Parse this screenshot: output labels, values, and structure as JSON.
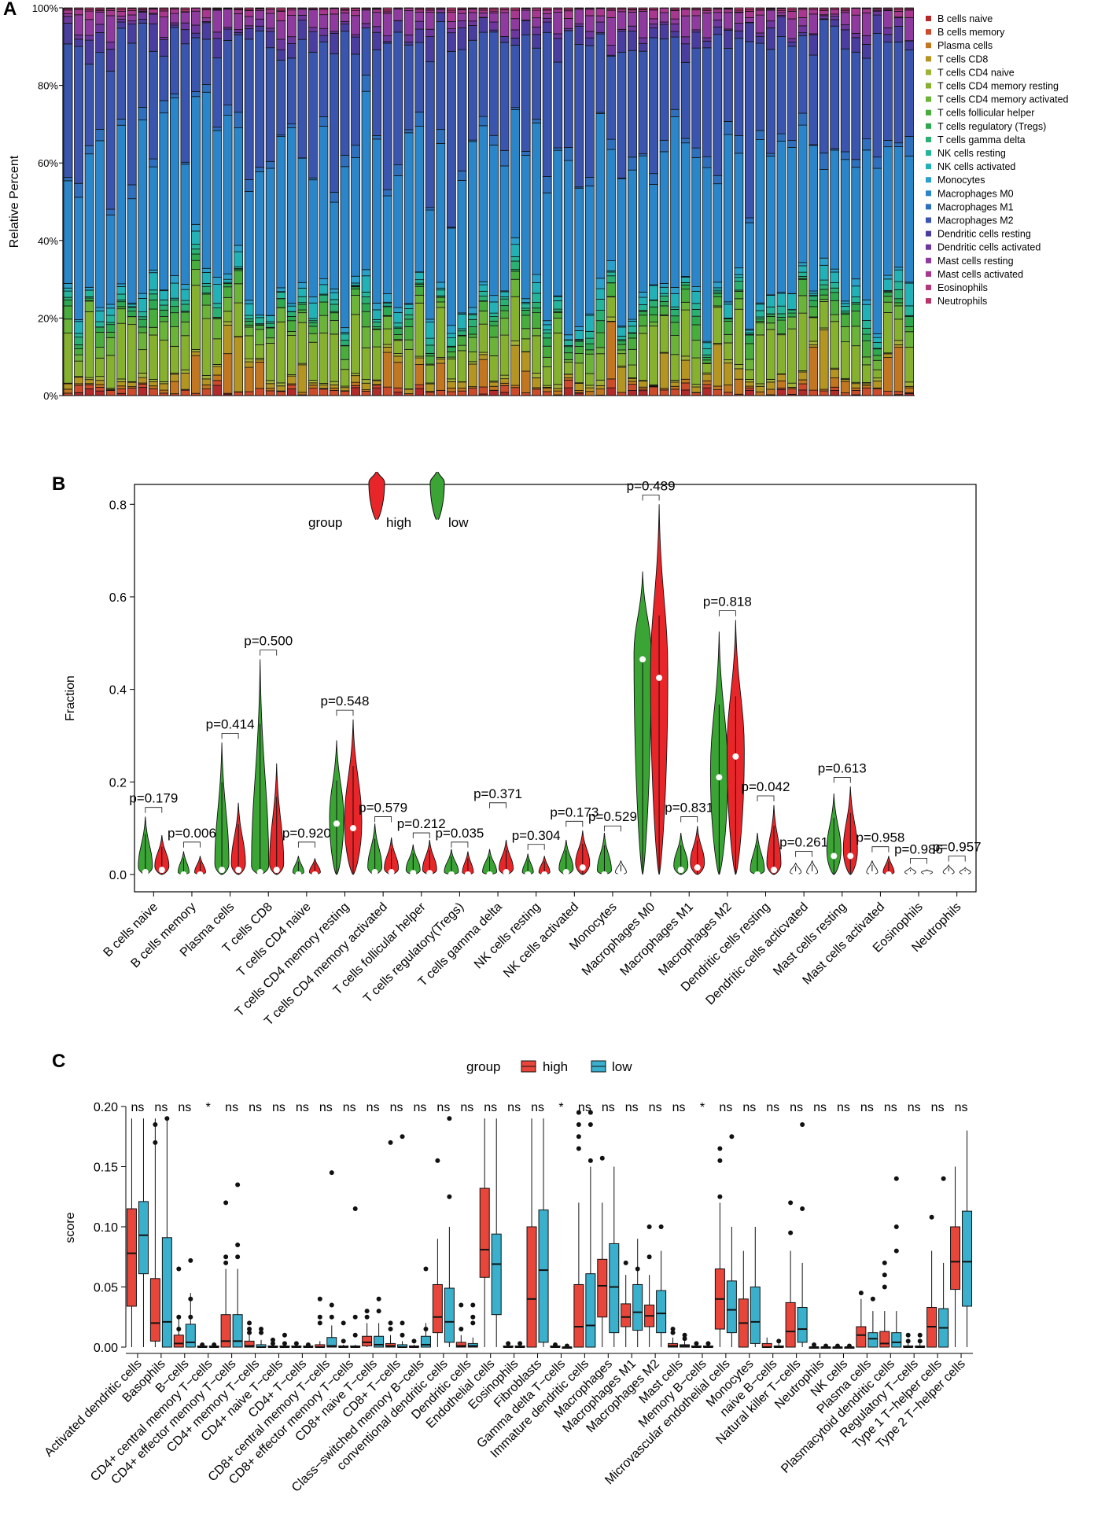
{
  "panels": {
    "a": {
      "letter": "A"
    },
    "b": {
      "letter": "B"
    },
    "c": {
      "letter": "C"
    }
  },
  "chart_data": [
    {
      "type": "bar",
      "subtype": "stacked-100-percent",
      "ylabel": "Relative Percent",
      "y_ticks": [
        "0%",
        "20%",
        "40%",
        "60%",
        "80%",
        "100%"
      ],
      "ylim": [
        0,
        1
      ],
      "n_samples": 80,
      "legend_position": "right",
      "series": [
        {
          "name": "B cells naive",
          "color": "#b22a2a"
        },
        {
          "name": "B cells memory",
          "color": "#cc4b2b"
        },
        {
          "name": "Plasma cells",
          "color": "#c2761f"
        },
        {
          "name": "T cells CD8",
          "color": "#b59522"
        },
        {
          "name": "T cells CD4 naive",
          "color": "#a0b135"
        },
        {
          "name": "T cells CD4 memory resting",
          "color": "#86b12f"
        },
        {
          "name": "T cells CD4 memory activated",
          "color": "#6cb33a"
        },
        {
          "name": "T cells follicular helper",
          "color": "#48ad3c"
        },
        {
          "name": "T cells regulatory (Tregs)",
          "color": "#2fa94f"
        },
        {
          "name": "T cells gamma delta",
          "color": "#2ab073"
        },
        {
          "name": "NK cells resting",
          "color": "#25b59b"
        },
        {
          "name": "NK cells activated",
          "color": "#22b1b7"
        },
        {
          "name": "Monocytes",
          "color": "#2aa0cb"
        },
        {
          "name": "Macrophages M0",
          "color": "#2a86c8"
        },
        {
          "name": "Macrophages M1",
          "color": "#2e6fbe"
        },
        {
          "name": "Macrophages M2",
          "color": "#3a55ad"
        },
        {
          "name": "Dendritic cells resting",
          "color": "#4a3da0"
        },
        {
          "name": "Dendritic cells activated",
          "color": "#6e37a0"
        },
        {
          "name": "Mast cells resting",
          "color": "#8e3a9e"
        },
        {
          "name": "Mast cells activated",
          "color": "#a8388f"
        },
        {
          "name": "Eosinophils",
          "color": "#b5377b"
        },
        {
          "name": "Neutrophils",
          "color": "#b8356a"
        }
      ]
    },
    {
      "type": "violin",
      "ylabel": "Fraction",
      "ylim": [
        0,
        0.85
      ],
      "y_ticks": [
        "0.0",
        "0.2",
        "0.4",
        "0.6",
        "0.8"
      ],
      "legend_title": "group",
      "legend": [
        {
          "name": "high",
          "color": "#e8262a"
        },
        {
          "name": "low",
          "color": "#3aa535"
        }
      ],
      "categories": [
        "B cells naive",
        "B cells memory",
        "Plasma cells",
        "T cells CD8",
        "T cells CD4 naive",
        "T cells CD4 memory resting",
        "T cells CD4 memory activated",
        "T cells follicular helper",
        "T cells regulatory(Tregs)",
        "T cells gamma delta",
        "NK cells resting",
        "NK cells activated",
        "Monocytes",
        "Macrophages M0",
        "Macrophages M1",
        "Macrophages M2",
        "Dendritic cells resting",
        "Dendritic cells acticvated",
        "Mast cells resting",
        "Mast cells activated",
        "Eosinophils",
        "Neutrophils"
      ],
      "p_values": [
        "p=0.179",
        "p=0.006",
        "p=0.414",
        "p=0.500",
        "p=0.920",
        "p=0.548",
        "p=0.579",
        "p=0.212",
        "p=0.035",
        "p=0.371",
        "p=0.304",
        "p=0.173",
        "p=0.529",
        "p=0.489",
        "p=0.831",
        "p=0.818",
        "p=0.042",
        "p=0.261",
        "p=0.613",
        "p=0.958",
        "p=0.986",
        "p=0.957"
      ],
      "low_max": [
        0.125,
        0.05,
        0.285,
        0.465,
        0.04,
        0.29,
        0.11,
        0.065,
        0.055,
        0.055,
        0.045,
        0.075,
        0.09,
        0.655,
        0.09,
        0.525,
        0.09,
        0.025,
        0.175,
        0.03,
        0.015,
        0.02
      ],
      "high_max": [
        0.085,
        0.04,
        0.155,
        0.24,
        0.035,
        0.335,
        0.08,
        0.075,
        0.05,
        0.075,
        0.04,
        0.095,
        0.03,
        0.8,
        0.105,
        0.55,
        0.15,
        0.03,
        0.19,
        0.04,
        0.01,
        0.015
      ],
      "low_median": [
        0.005,
        0.0,
        0.01,
        0.005,
        0.0,
        0.11,
        0.005,
        0.003,
        0.0,
        0.0,
        0.0,
        0.005,
        0.0,
        0.465,
        0.01,
        0.21,
        0.0,
        0.0,
        0.04,
        0.0,
        0.0,
        0.0
      ],
      "high_median": [
        0.01,
        0.0,
        0.01,
        0.01,
        0.0,
        0.1,
        0.005,
        0.003,
        0.0,
        0.005,
        0.0,
        0.015,
        0.0,
        0.425,
        0.015,
        0.255,
        0.01,
        0.0,
        0.04,
        0.0,
        0.0,
        0.0
      ],
      "p_y": [
        0.145,
        0.07,
        0.305,
        0.485,
        0.07,
        0.355,
        0.125,
        0.09,
        0.07,
        0.155,
        0.065,
        0.115,
        0.105,
        0.82,
        0.125,
        0.57,
        0.17,
        0.05,
        0.21,
        0.06,
        0.035,
        0.04
      ]
    },
    {
      "type": "box",
      "ylabel": "score",
      "ylim": [
        0,
        0.21
      ],
      "y_ticks": [
        "0.00",
        "0.05",
        "0.10",
        "0.15",
        "0.20"
      ],
      "legend_title": "group",
      "legend": [
        {
          "name": "high",
          "color": "#e8463a"
        },
        {
          "name": "low",
          "color": "#3ab0cd"
        }
      ],
      "categories": [
        "Activated dendritic cells",
        "Basophils",
        "B−cells",
        "CD4+ central memory T−cells",
        "CD4+ effector memory T−cells",
        "CD4+ memory T−cells",
        "CD4+ naive T−cells",
        "CD4+ T−cells",
        "CD8+ central memory T−cells",
        "CD8+ effector memory T−cells",
        "CD8+ naive T−cells",
        "CD8+ T−cells",
        "Class−switched memory B−cells",
        "conventional dendritic cells",
        "Dendritic cells",
        "Endothelial cells",
        "Eosinophils",
        "Fibroblasts",
        "Gamma delta T−cells",
        "Immature dendritic cells",
        "Macrophages",
        "Macrophages M1",
        "Macrophages M2",
        "Mast cells",
        "Memory B−cells",
        "Microvascular endothelial cells",
        "Monocytes",
        "naive B−cells",
        "Natural killer T−cells",
        "Neutrophils",
        "NK cells",
        "Plasma cells",
        "Plasmacytoid dendritic cells",
        "Regulatory T−cells",
        "Type 1 T−helper cells",
        "Type 2 T−helper cells"
      ],
      "significance": [
        "ns",
        "ns",
        "ns",
        "*",
        "ns",
        "ns",
        "ns",
        "ns",
        "ns",
        "ns",
        "ns",
        "ns",
        "ns",
        "ns",
        "ns",
        "ns",
        "ns",
        "ns",
        "*",
        "ns",
        "ns",
        "ns",
        "ns",
        "ns",
        "*",
        "ns",
        "ns",
        "ns",
        "ns",
        "ns",
        "ns",
        "ns",
        "ns",
        "ns",
        "ns",
        "ns"
      ],
      "high": [
        [
          0.0,
          0.034,
          0.078,
          0.115,
          0.19
        ],
        [
          0.0,
          0.005,
          0.02,
          0.057,
          0.19
        ],
        [
          0.0,
          0.0,
          0.003,
          0.01,
          0.025
        ],
        [
          0.0,
          0.0,
          0.0,
          0.001,
          0.002
        ],
        [
          0.0,
          0.0,
          0.005,
          0.027,
          0.065
        ],
        [
          0.0,
          0.0,
          0.001,
          0.005,
          0.01
        ],
        [
          0.0,
          0.0,
          0.0,
          0.001,
          0.002
        ],
        [
          0.0,
          0.0,
          0.0,
          0.001,
          0.002
        ],
        [
          0.0,
          0.0,
          0.0,
          0.002,
          0.005
        ],
        [
          0.0,
          0.0,
          0.0,
          0.001,
          0.002
        ],
        [
          0.0,
          0.001,
          0.004,
          0.009,
          0.02
        ],
        [
          0.0,
          0.0,
          0.001,
          0.003,
          0.01
        ],
        [
          0.0,
          0.0,
          0.0,
          0.001,
          0.002
        ],
        [
          0.0,
          0.012,
          0.025,
          0.052,
          0.09
        ],
        [
          0.0,
          0.0,
          0.001,
          0.004,
          0.01
        ],
        [
          0.0,
          0.058,
          0.081,
          0.132,
          0.19
        ],
        [
          0.0,
          0.0,
          0.0,
          0.001,
          0.002
        ],
        [
          0.0,
          0.0,
          0.04,
          0.1,
          0.19
        ],
        [
          0.0,
          0.0,
          0.0,
          0.001,
          0.002
        ],
        [
          0.0,
          0.0,
          0.017,
          0.052,
          0.12
        ],
        [
          0.0,
          0.025,
          0.051,
          0.073,
          0.12
        ],
        [
          0.0,
          0.017,
          0.025,
          0.036,
          0.06
        ],
        [
          0.0,
          0.017,
          0.026,
          0.035,
          0.06
        ],
        [
          0.0,
          0.0,
          0.001,
          0.003,
          0.008
        ],
        [
          0.0,
          0.0,
          0.0,
          0.001,
          0.002
        ],
        [
          0.0,
          0.015,
          0.04,
          0.065,
          0.12
        ],
        [
          0.0,
          0.0,
          0.02,
          0.04,
          0.08
        ],
        [
          0.0,
          0.0,
          0.0,
          0.003,
          0.008
        ],
        [
          0.0,
          0.0,
          0.013,
          0.037,
          0.08
        ],
        [
          0.0,
          0.0,
          0.0,
          0.0,
          0.0
        ],
        [
          0.0,
          0.0,
          0.0,
          0.0,
          0.0
        ],
        [
          0.0,
          0.0,
          0.01,
          0.017,
          0.04
        ],
        [
          0.0,
          0.0,
          0.003,
          0.013,
          0.03
        ],
        [
          0.0,
          0.0,
          0.0,
          0.001,
          0.003
        ],
        [
          0.0,
          0.0,
          0.017,
          0.033,
          0.08
        ],
        [
          0.0,
          0.048,
          0.071,
          0.1,
          0.15
        ]
      ],
      "low": [
        [
          0.0,
          0.061,
          0.093,
          0.121,
          0.19
        ],
        [
          0.0,
          0.0,
          0.021,
          0.091,
          0.19
        ],
        [
          0.0,
          0.0,
          0.004,
          0.019,
          0.045
        ],
        [
          0.0,
          0.0,
          0.0,
          0.001,
          0.002
        ],
        [
          0.0,
          0.0,
          0.005,
          0.027,
          0.065
        ],
        [
          0.0,
          0.0,
          0.0,
          0.002,
          0.006
        ],
        [
          0.0,
          0.0,
          0.0,
          0.001,
          0.002
        ],
        [
          0.0,
          0.0,
          0.0,
          0.001,
          0.002
        ],
        [
          0.0,
          0.0,
          0.001,
          0.008,
          0.018
        ],
        [
          0.0,
          0.0,
          0.0,
          0.001,
          0.002
        ],
        [
          0.0,
          0.0,
          0.002,
          0.009,
          0.02
        ],
        [
          0.0,
          0.0,
          0.0,
          0.002,
          0.005
        ],
        [
          0.0,
          0.0,
          0.002,
          0.009,
          0.02
        ],
        [
          0.0,
          0.004,
          0.021,
          0.049,
          0.1
        ],
        [
          0.0,
          0.0,
          0.001,
          0.003,
          0.008
        ],
        [
          0.0,
          0.027,
          0.069,
          0.094,
          0.19
        ],
        [
          0.0,
          0.0,
          0.0,
          0.001,
          0.002
        ],
        [
          0.0,
          0.004,
          0.064,
          0.114,
          0.19
        ],
        [
          0.0,
          0.0,
          0.0,
          0.0,
          0.0
        ],
        [
          0.0,
          0.0,
          0.018,
          0.061,
          0.15
        ],
        [
          0.0,
          0.012,
          0.05,
          0.086,
          0.15
        ],
        [
          0.0,
          0.014,
          0.029,
          0.052,
          0.09
        ],
        [
          0.0,
          0.012,
          0.028,
          0.047,
          0.08
        ],
        [
          0.0,
          0.0,
          0.001,
          0.002,
          0.005
        ],
        [
          0.0,
          0.0,
          0.0,
          0.001,
          0.002
        ],
        [
          0.0,
          0.012,
          0.031,
          0.055,
          0.1
        ],
        [
          0.0,
          0.003,
          0.021,
          0.05,
          0.1
        ],
        [
          0.0,
          0.0,
          0.0,
          0.001,
          0.003
        ],
        [
          0.0,
          0.004,
          0.015,
          0.033,
          0.07
        ],
        [
          0.0,
          0.0,
          0.0,
          0.0,
          0.0
        ],
        [
          0.0,
          0.0,
          0.0,
          0.0,
          0.0
        ],
        [
          0.0,
          0.0,
          0.007,
          0.012,
          0.03
        ],
        [
          0.0,
          0.0,
          0.004,
          0.012,
          0.03
        ],
        [
          0.0,
          0.0,
          0.0,
          0.001,
          0.003
        ],
        [
          0.0,
          0.0,
          0.016,
          0.032,
          0.07
        ],
        [
          0.0,
          0.034,
          0.071,
          0.113,
          0.18
        ]
      ],
      "outliers_high": [
        [],
        [
          0.17,
          0.185
        ],
        [
          0.015,
          0.025,
          0.065
        ],
        [
          0.002
        ],
        [
          0.07,
          0.075,
          0.12
        ],
        [
          0.012,
          0.015,
          0.02
        ],
        [
          0.003,
          0.006
        ],
        [
          0.003
        ],
        [
          0.02,
          0.025,
          0.04
        ],
        [
          0.005,
          0.02
        ],
        [
          0.025,
          0.03
        ],
        [
          0.015,
          0.02,
          0.17
        ],
        [
          0.005
        ],
        [
          0.155
        ],
        [
          0.015,
          0.035
        ],
        [],
        [
          0.003
        ],
        [],
        [
          0.002
        ],
        [
          0.165,
          0.175,
          0.185,
          0.195
        ],
        [
          0.157
        ],
        [
          0.07
        ],
        [
          0.075,
          0.1
        ],
        [
          0.012,
          0.015
        ],
        [
          0.003
        ],
        [
          0.125,
          0.155,
          0.165
        ],
        [],
        [],
        [
          0.095,
          0.12
        ],
        [
          0.002
        ],
        [
          0.001
        ],
        [
          0.045
        ],
        [
          0.05,
          0.06,
          0.07
        ],
        [
          0.005,
          0.01
        ],
        [
          0.108
        ],
        []
      ],
      "outliers_low": [
        [],
        [
          0.19
        ],
        [
          0.025,
          0.04,
          0.072
        ],
        [
          0.002
        ],
        [
          0.075,
          0.085,
          0.135
        ],
        [
          0.012,
          0.015
        ],
        [
          0.003,
          0.01
        ],
        [
          0.002
        ],
        [
          0.025,
          0.035,
          0.145
        ],
        [
          0.01,
          0.025,
          0.115
        ],
        [
          0.03,
          0.04
        ],
        [
          0.01,
          0.02,
          0.175
        ],
        [
          0.015,
          0.065
        ],
        [
          0.125,
          0.19
        ],
        [
          0.02,
          0.025,
          0.035
        ],
        [],
        [
          0.003
        ],
        [],
        [
          0.001
        ],
        [
          0.155,
          0.185,
          0.195
        ],
        [],
        [
          0.065
        ],
        [
          0.1
        ],
        [
          0.007,
          0.01
        ],
        [
          0.003
        ],
        [
          0.175
        ],
        [],
        [
          0.005
        ],
        [
          0.115,
          0.185
        ],
        [
          0.001
        ],
        [
          0.001
        ],
        [
          0.04
        ],
        [
          0.08,
          0.1,
          0.14
        ],
        [
          0.005,
          0.01
        ],
        [
          0.14
        ],
        []
      ]
    }
  ]
}
